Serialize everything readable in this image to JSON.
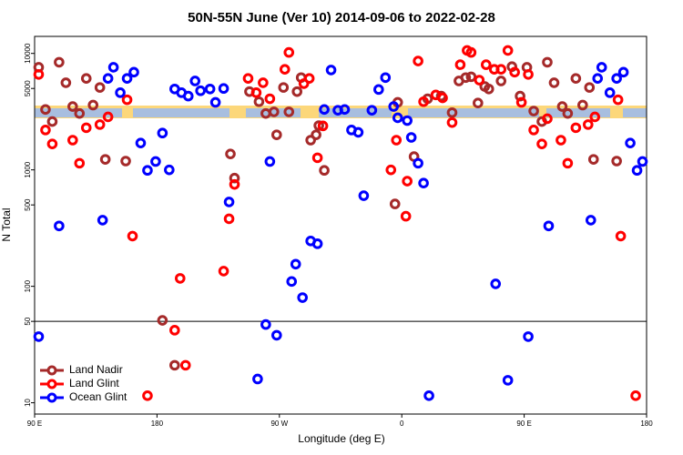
{
  "chart_data": {
    "type": "scatter",
    "title": "50N-55N June (Ver 10)   2014-09-06 to 2022-02-28",
    "xlabel": "Longitude (deg E)",
    "ylabel": "N Total",
    "xlim": [
      90,
      540
    ],
    "ylim": [
      8,
      14000
    ],
    "log_y": true,
    "hline": 50,
    "legend": "lower left",
    "xticks": [
      {
        "value": 90,
        "label": "90 E"
      },
      {
        "value": 180,
        "label": "180"
      },
      {
        "value": 270,
        "label": "90 W"
      },
      {
        "value": 360,
        "label": "0"
      },
      {
        "value": 450,
        "label": "90 E"
      },
      {
        "value": 540,
        "label": "180"
      }
    ],
    "yticks": [
      10,
      50,
      100,
      500,
      1000,
      5000,
      10000
    ],
    "series": [
      {
        "name": "Land Nadir",
        "color": "#a52a2a",
        "x": [
          93,
          98,
          103,
          108,
          113,
          118,
          123,
          128,
          138,
          133,
          142,
          157,
          184,
          193,
          234,
          237,
          248,
          255,
          260,
          266,
          268,
          273,
          277,
          283,
          286,
          293,
          297,
          299,
          303,
          355,
          357,
          369,
          379,
          389,
          397,
          402,
          407,
          411,
          416,
          421,
          424,
          433,
          441,
          447,
          452,
          457,
          463,
          467,
          472,
          478,
          482,
          488,
          498,
          493,
          501,
          518
        ],
        "values": [
          7600,
          3300,
          2600,
          8400,
          5600,
          3500,
          3050,
          6100,
          5100,
          3600,
          1230,
          1190,
          51,
          21,
          1370,
          850,
          4700,
          3850,
          3050,
          3150,
          2000,
          5100,
          3150,
          4700,
          6200,
          1800,
          2000,
          2400,
          990,
          510,
          3800,
          1300,
          4080,
          4300,
          3100,
          5800,
          6200,
          6300,
          3750,
          5200,
          4950,
          5800,
          7700,
          4300,
          7600,
          3200,
          2600,
          8400,
          5600,
          3500,
          3050,
          6100,
          5100,
          3600,
          1230,
          1190
        ]
      },
      {
        "name": "Land Glint",
        "color": "#ff0000",
        "x": [
          93,
          98,
          103,
          118,
          123,
          128,
          138,
          144,
          158,
          162,
          173,
          193,
          197,
          201,
          229,
          233,
          237,
          247,
          253,
          258,
          263,
          274,
          277,
          288,
          292,
          298,
          302,
          352,
          356,
          363,
          364,
          372,
          376,
          385,
          390,
          397,
          403,
          408,
          411,
          417,
          422,
          428,
          433,
          438,
          443,
          448,
          453,
          457,
          463,
          467,
          477,
          482,
          488,
          497,
          502,
          519,
          521,
          532
        ],
        "values": [
          6600,
          2200,
          1670,
          1800,
          1140,
          2300,
          2450,
          2850,
          4000,
          270,
          11.5,
          42,
          117,
          21,
          135,
          380,
          750,
          6100,
          4600,
          5600,
          4080,
          7300,
          10200,
          5500,
          6100,
          1270,
          2385,
          1000,
          1800,
          400,
          800,
          8600,
          3850,
          4400,
          4150,
          2550,
          8000,
          10600,
          10200,
          5900,
          8000,
          7300,
          7300,
          10600,
          6900,
          3800,
          6600,
          2200,
          1670,
          2750,
          1800,
          1140,
          2300,
          2450,
          2850,
          4000,
          270,
          11.5
        ]
      },
      {
        "name": "Ocean Glint",
        "color": "#0000ff",
        "x": [
          93,
          108,
          140,
          144,
          148,
          153,
          158,
          163,
          168,
          173,
          179,
          184,
          189,
          193,
          198,
          203,
          208,
          212,
          219,
          223,
          229,
          233,
          254,
          260,
          263,
          268,
          279,
          282,
          287,
          293,
          298,
          303,
          308,
          313,
          318,
          323,
          328,
          332,
          338,
          343,
          348,
          354,
          357,
          364,
          367,
          372,
          376,
          380,
          429,
          438,
          453,
          468,
          499,
          504,
          507,
          513,
          518,
          523,
          528,
          533,
          537
        ],
        "values": [
          37,
          330,
          370,
          6100,
          7600,
          4600,
          6100,
          6900,
          1700,
          990,
          1180,
          2070,
          1000,
          4950,
          4600,
          4300,
          5800,
          4780,
          4950,
          3800,
          5000,
          530,
          16,
          47,
          1180,
          38,
          110,
          155,
          80,
          245,
          232,
          3300,
          7200,
          3250,
          3300,
          2200,
          2100,
          600,
          3250,
          4900,
          6200,
          3500,
          2800,
          2650,
          1900,
          1140,
          770,
          11.5,
          105,
          15.6,
          37,
          330,
          370,
          6100,
          7600,
          4600,
          6100,
          6900,
          1700,
          990,
          1180
        ]
      }
    ]
  }
}
